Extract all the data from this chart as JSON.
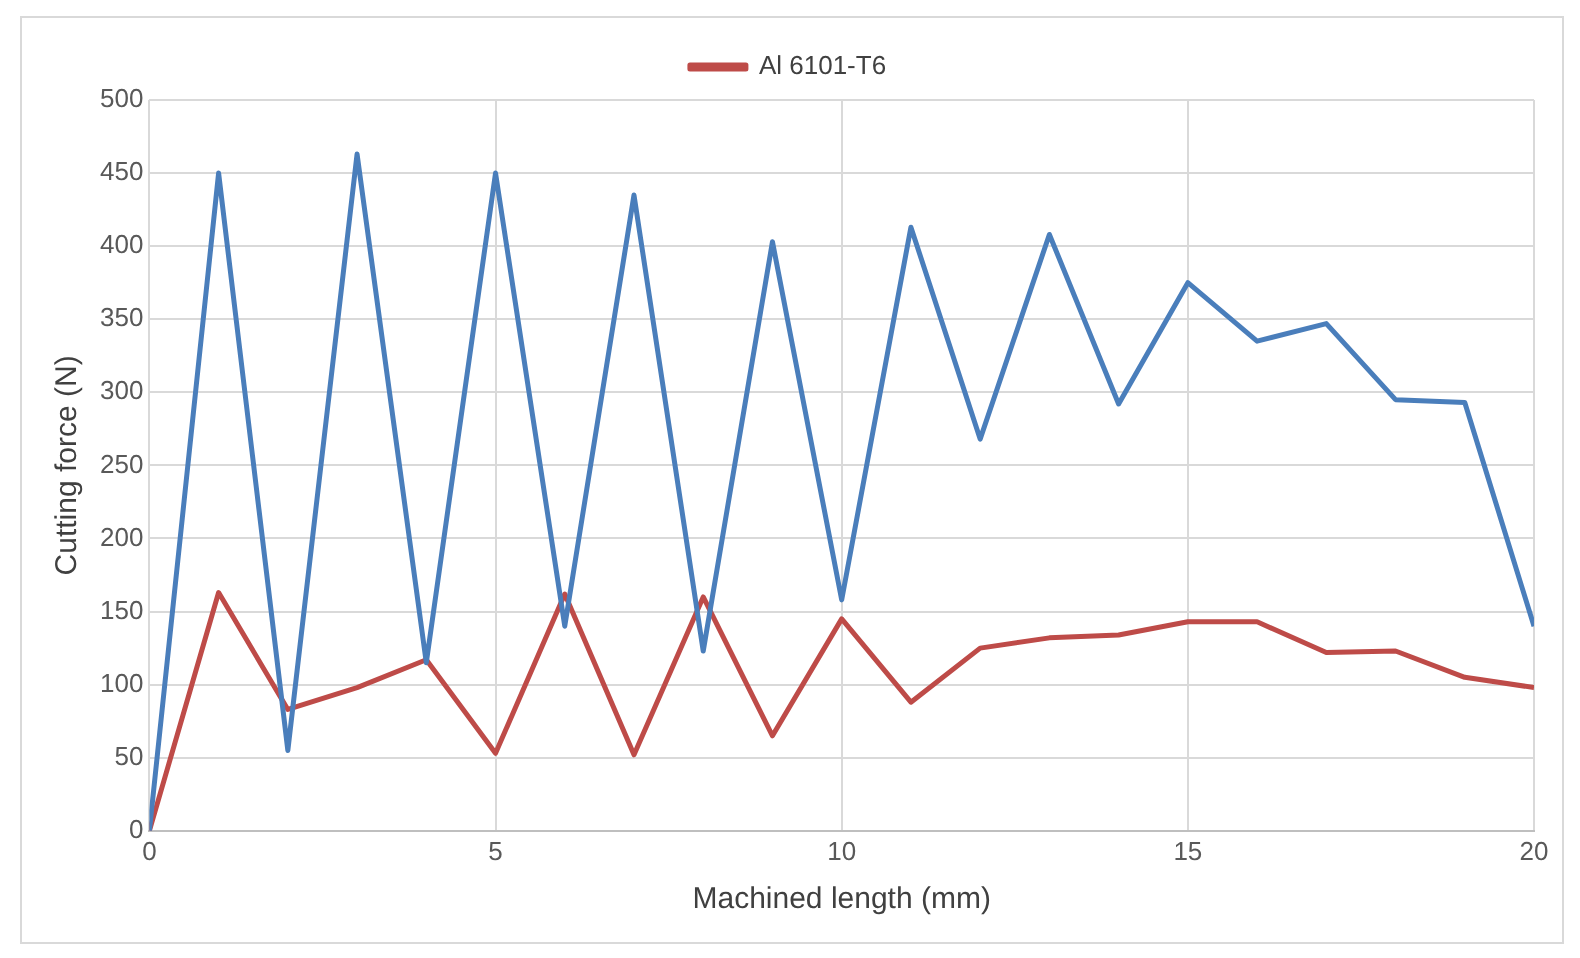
{
  "chart_data": {
    "type": "line",
    "xlabel": "Machined length (mm)",
    "ylabel": "Cutting force (N)",
    "x": [
      0,
      1,
      2,
      3,
      4,
      5,
      6,
      7,
      8,
      9,
      10,
      11,
      12,
      13,
      14,
      15,
      16,
      17,
      18,
      19,
      20
    ],
    "series": [
      {
        "color": "#4a7ebb",
        "values": [
          0,
          450,
          55,
          463,
          115,
          450,
          140,
          435,
          123,
          403,
          158,
          413,
          268,
          408,
          292,
          375,
          335,
          347,
          295,
          293,
          140
        ]
      },
      {
        "name": "Al 6101-T6",
        "color": "#be4b48",
        "values": [
          0,
          163,
          83,
          98,
          117,
          53,
          162,
          52,
          160,
          65,
          145,
          88,
          125,
          132,
          134,
          143,
          143,
          122,
          123,
          105,
          98
        ]
      }
    ],
    "xlim": [
      0,
      20
    ],
    "xticks": [
      0,
      5,
      10,
      15,
      20
    ],
    "ylim": [
      0,
      500
    ],
    "yticks": [
      0,
      50,
      100,
      150,
      200,
      250,
      300,
      350,
      400,
      450,
      500
    ],
    "grid": true,
    "legend": "top",
    "marker": "none",
    "line_style": "solid"
  }
}
